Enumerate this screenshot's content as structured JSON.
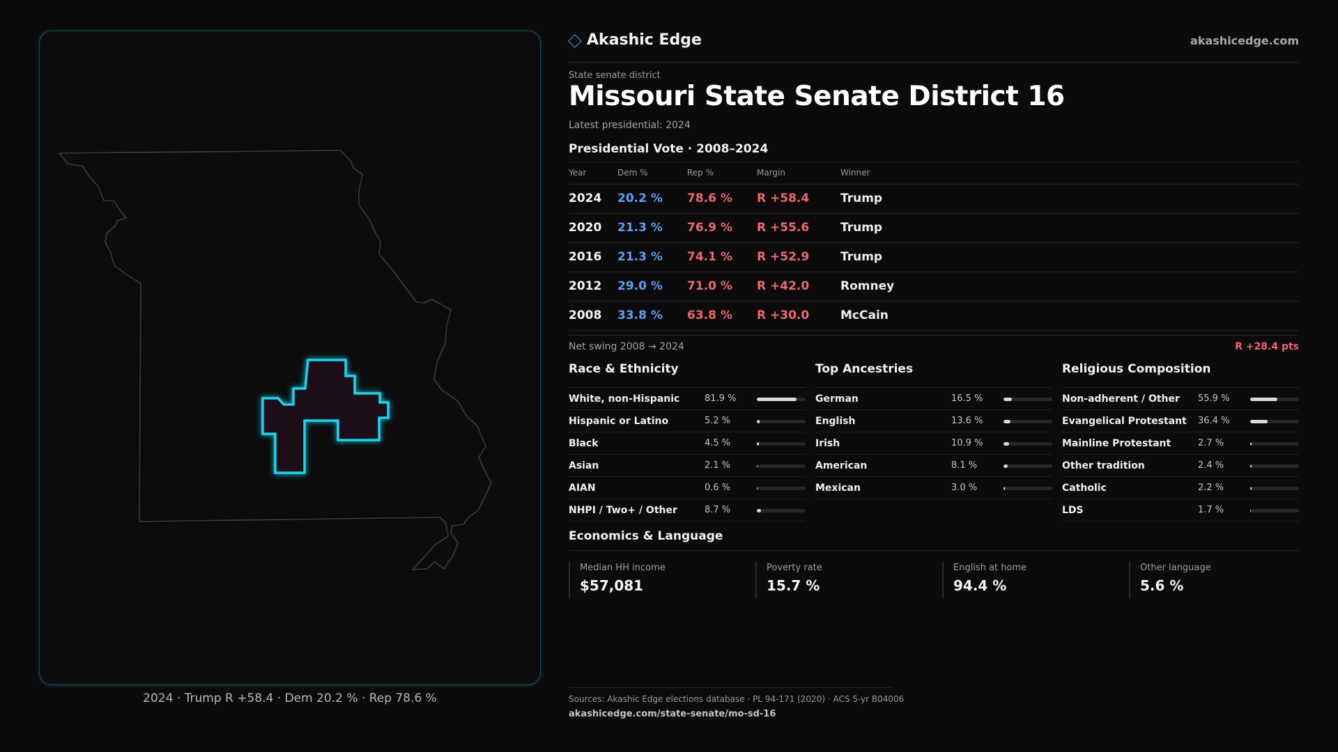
{
  "brand": {
    "name": "Akashic Edge",
    "url": "akashicedge.com",
    "accent": "#1fb6c9"
  },
  "header": {
    "kicker": "State senate district",
    "title": "Missouri State Senate District 16",
    "latest": "Latest presidential: 2024"
  },
  "map": {
    "caption": "2024 · Trump R +58.4 · Dem 20.2 % · Rep 78.6 %",
    "district_outline_color": "#19d6f0",
    "state_outline_color": "#3a3a3e"
  },
  "presidential": {
    "title": "Presidential Vote · 2008–2024",
    "headers": {
      "year": "Year",
      "dem": "Dem %",
      "rep": "Rep %",
      "margin": "Margin",
      "winner": "Winner"
    },
    "rows": [
      {
        "year": "2024",
        "dem": "20.2 %",
        "rep": "78.6 %",
        "margin": "R +58.4",
        "winner": "Trump"
      },
      {
        "year": "2020",
        "dem": "21.3 %",
        "rep": "76.9 %",
        "margin": "R +55.6",
        "winner": "Trump"
      },
      {
        "year": "2016",
        "dem": "21.3 %",
        "rep": "74.1 %",
        "margin": "R +52.9",
        "winner": "Trump"
      },
      {
        "year": "2012",
        "dem": "29.0 %",
        "rep": "71.0 %",
        "margin": "R +42.0",
        "winner": "Romney"
      },
      {
        "year": "2008",
        "dem": "33.8 %",
        "rep": "63.8 %",
        "margin": "R +30.0",
        "winner": "McCain"
      }
    ],
    "swing_label": "Net swing 2008 → 2024",
    "swing_value": "R +28.4 pts"
  },
  "race": {
    "title": "Race & Ethnicity",
    "items": [
      {
        "label": "White, non-Hispanic",
        "pct": "81.9 %",
        "value": 81.9
      },
      {
        "label": "Hispanic or Latino",
        "pct": "5.2 %",
        "value": 5.2
      },
      {
        "label": "Black",
        "pct": "4.5 %",
        "value": 4.5
      },
      {
        "label": "Asian",
        "pct": "2.1 %",
        "value": 2.1
      },
      {
        "label": "AIAN",
        "pct": "0.6 %",
        "value": 0.6
      },
      {
        "label": "NHPI / Two+ / Other",
        "pct": "8.7 %",
        "value": 8.7
      }
    ]
  },
  "ancestry": {
    "title": "Top Ancestries",
    "items": [
      {
        "label": "German",
        "pct": "16.5 %",
        "value": 16.5
      },
      {
        "label": "English",
        "pct": "13.6 %",
        "value": 13.6
      },
      {
        "label": "Irish",
        "pct": "10.9 %",
        "value": 10.9
      },
      {
        "label": "American",
        "pct": "8.1 %",
        "value": 8.1
      },
      {
        "label": "Mexican",
        "pct": "3.0 %",
        "value": 3.0
      }
    ]
  },
  "religion": {
    "title": "Religious Composition",
    "items": [
      {
        "label": "Non-adherent / Other",
        "pct": "55.9 %",
        "value": 55.9
      },
      {
        "label": "Evangelical Protestant",
        "pct": "36.4 %",
        "value": 36.4
      },
      {
        "label": "Mainline Protestant",
        "pct": "2.7 %",
        "value": 2.7
      },
      {
        "label": "Other tradition",
        "pct": "2.4 %",
        "value": 2.4
      },
      {
        "label": "Catholic",
        "pct": "2.2 %",
        "value": 2.2
      },
      {
        "label": "LDS",
        "pct": "1.7 %",
        "value": 1.7
      }
    ]
  },
  "economics": {
    "title": "Economics & Language",
    "cards": [
      {
        "label": "Median HH income",
        "value": "$57,081"
      },
      {
        "label": "Poverty rate",
        "value": "15.7 %"
      },
      {
        "label": "English at home",
        "value": "94.4 %"
      },
      {
        "label": "Other language",
        "value": "5.6 %"
      }
    ]
  },
  "footer": {
    "sources": "Sources: Akashic Edge elections database · PL 94-171 (2020) · ACS 5-yr B04006",
    "url": "akashicedge.com/state-senate/mo-sd-16"
  }
}
